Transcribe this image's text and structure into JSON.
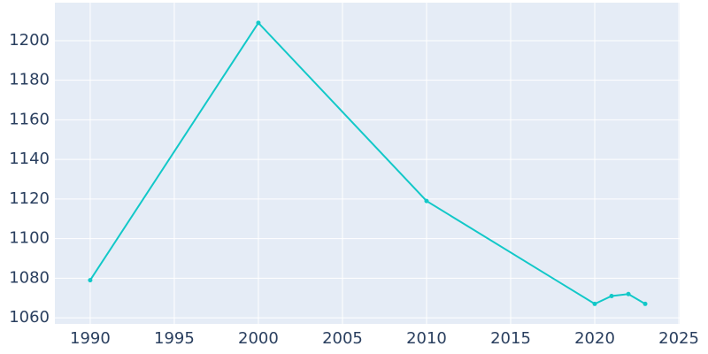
{
  "chart_data": {
    "type": "line",
    "x": [
      1990,
      2000,
      2010,
      2020,
      2021,
      2022,
      2023
    ],
    "series": [
      {
        "color": "#12c8c8",
        "values": [
          1079,
          1209,
          1119,
          1067,
          1071,
          1072,
          1067
        ]
      }
    ],
    "xlim": [
      1987.9,
      2025.05
    ],
    "xticks": [
      1990,
      1995,
      2000,
      2005,
      2010,
      2015,
      2020,
      2025
    ],
    "ylim": [
      1056.9,
      1219.2
    ],
    "yticks": [
      1060,
      1080,
      1100,
      1120,
      1140,
      1160,
      1180,
      1200
    ],
    "grid": true
  }
}
